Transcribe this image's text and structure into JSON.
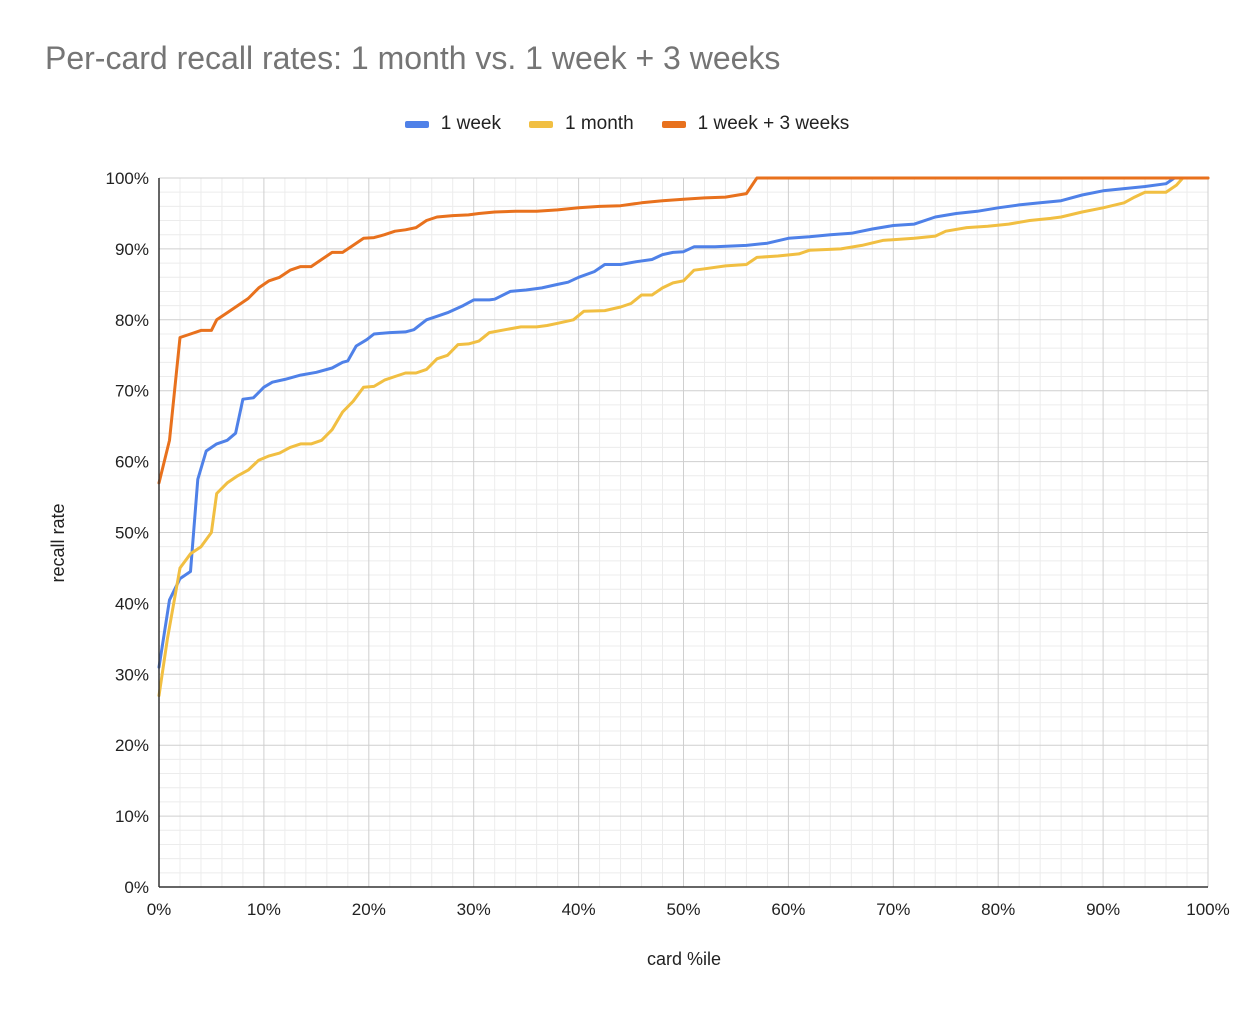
{
  "chart_data": {
    "type": "line",
    "title": "Per-card recall rates: 1 month vs. 1 week + 3 weeks",
    "xlabel": "card %ile",
    "ylabel": "recall rate",
    "xlim": [
      0,
      100
    ],
    "ylim": [
      0,
      100
    ],
    "x_ticks": [
      "0%",
      "10%",
      "20%",
      "30%",
      "40%",
      "50%",
      "60%",
      "70%",
      "80%",
      "90%",
      "100%"
    ],
    "y_ticks": [
      "0%",
      "10%",
      "20%",
      "30%",
      "40%",
      "50%",
      "60%",
      "70%",
      "80%",
      "90%",
      "100%"
    ],
    "grid": true,
    "legend_position": "top",
    "series": [
      {
        "name": "1 week",
        "color": "#4f81e8",
        "points": [
          [
            0,
            31
          ],
          [
            1,
            40.5
          ],
          [
            2,
            43.5
          ],
          [
            3,
            44.5
          ],
          [
            3.7,
            57.5
          ],
          [
            4.5,
            61.5
          ],
          [
            5.5,
            62.5
          ],
          [
            6.5,
            63
          ],
          [
            7.3,
            64
          ],
          [
            8,
            68.8
          ],
          [
            9,
            69
          ],
          [
            10,
            70.5
          ],
          [
            10.8,
            71.2
          ],
          [
            12,
            71.6
          ],
          [
            13.5,
            72.2
          ],
          [
            15,
            72.6
          ],
          [
            16.5,
            73.2
          ],
          [
            17.5,
            74
          ],
          [
            18,
            74.2
          ],
          [
            18.8,
            76.3
          ],
          [
            19.8,
            77.2
          ],
          [
            20.5,
            78
          ],
          [
            22,
            78.2
          ],
          [
            23.5,
            78.3
          ],
          [
            24.3,
            78.6
          ],
          [
            25.5,
            80
          ],
          [
            26.5,
            80.5
          ],
          [
            27.5,
            81
          ],
          [
            29,
            82
          ],
          [
            30,
            82.8
          ],
          [
            31.5,
            82.8
          ],
          [
            32,
            82.9
          ],
          [
            33.5,
            84
          ],
          [
            35,
            84.2
          ],
          [
            36.5,
            84.5
          ],
          [
            38,
            85
          ],
          [
            39,
            85.3
          ],
          [
            40,
            86
          ],
          [
            41.5,
            86.8
          ],
          [
            42.5,
            87.8
          ],
          [
            44,
            87.8
          ],
          [
            45.5,
            88.2
          ],
          [
            47,
            88.5
          ],
          [
            48,
            89.2
          ],
          [
            49,
            89.5
          ],
          [
            50,
            89.6
          ],
          [
            51,
            90.3
          ],
          [
            53,
            90.3
          ],
          [
            56,
            90.5
          ],
          [
            58,
            90.8
          ],
          [
            60,
            91.5
          ],
          [
            62,
            91.7
          ],
          [
            64,
            92
          ],
          [
            66,
            92.2
          ],
          [
            68,
            92.8
          ],
          [
            70,
            93.3
          ],
          [
            72,
            93.5
          ],
          [
            74,
            94.5
          ],
          [
            76,
            95
          ],
          [
            78,
            95.3
          ],
          [
            80,
            95.8
          ],
          [
            82,
            96.2
          ],
          [
            84,
            96.5
          ],
          [
            86,
            96.8
          ],
          [
            88,
            97.6
          ],
          [
            90,
            98.2
          ],
          [
            92,
            98.5
          ],
          [
            94,
            98.8
          ],
          [
            96,
            99.2
          ],
          [
            96.8,
            100
          ],
          [
            100,
            100
          ]
        ]
      },
      {
        "name": "1 month",
        "color": "#f1bf42",
        "points": [
          [
            0,
            27
          ],
          [
            0.8,
            35
          ],
          [
            2,
            45
          ],
          [
            3,
            47
          ],
          [
            4,
            48
          ],
          [
            5,
            50
          ],
          [
            5.5,
            55.5
          ],
          [
            6.5,
            57
          ],
          [
            7.5,
            58
          ],
          [
            8.5,
            58.8
          ],
          [
            9.5,
            60.2
          ],
          [
            10.5,
            60.8
          ],
          [
            11.5,
            61.2
          ],
          [
            12.5,
            62
          ],
          [
            13.5,
            62.5
          ],
          [
            14.5,
            62.5
          ],
          [
            15.5,
            63
          ],
          [
            16.5,
            64.5
          ],
          [
            17.5,
            67
          ],
          [
            18.5,
            68.5
          ],
          [
            19.5,
            70.5
          ],
          [
            20.5,
            70.6
          ],
          [
            21.5,
            71.5
          ],
          [
            22.5,
            72
          ],
          [
            23.5,
            72.5
          ],
          [
            24.5,
            72.5
          ],
          [
            25.5,
            73
          ],
          [
            26.5,
            74.5
          ],
          [
            27.5,
            75
          ],
          [
            28.5,
            76.5
          ],
          [
            29.5,
            76.6
          ],
          [
            30.5,
            77
          ],
          [
            31.5,
            78.2
          ],
          [
            33,
            78.6
          ],
          [
            34.5,
            79
          ],
          [
            36,
            79
          ],
          [
            37,
            79.2
          ],
          [
            38,
            79.5
          ],
          [
            39.5,
            80
          ],
          [
            40.5,
            81.2
          ],
          [
            42.5,
            81.3
          ],
          [
            44,
            81.8
          ],
          [
            45,
            82.3
          ],
          [
            46,
            83.5
          ],
          [
            47,
            83.5
          ],
          [
            48,
            84.5
          ],
          [
            49,
            85.2
          ],
          [
            50,
            85.5
          ],
          [
            51,
            87
          ],
          [
            52,
            87.2
          ],
          [
            54,
            87.6
          ],
          [
            56,
            87.8
          ],
          [
            57,
            88.8
          ],
          [
            59,
            89
          ],
          [
            61,
            89.3
          ],
          [
            62,
            89.8
          ],
          [
            65,
            90
          ],
          [
            67,
            90.5
          ],
          [
            69,
            91.2
          ],
          [
            72,
            91.5
          ],
          [
            74,
            91.8
          ],
          [
            75,
            92.5
          ],
          [
            77,
            93
          ],
          [
            79,
            93.2
          ],
          [
            81,
            93.5
          ],
          [
            83,
            94
          ],
          [
            85,
            94.3
          ],
          [
            86,
            94.5
          ],
          [
            88,
            95.2
          ],
          [
            90,
            95.8
          ],
          [
            92,
            96.5
          ],
          [
            93,
            97.3
          ],
          [
            94,
            98
          ],
          [
            96,
            98
          ],
          [
            97,
            99
          ],
          [
            97.6,
            100
          ],
          [
            100,
            100
          ]
        ]
      },
      {
        "name": "1 week + 3 weeks",
        "color": "#e8711d",
        "points": [
          [
            0,
            57
          ],
          [
            1,
            63
          ],
          [
            2,
            77.5
          ],
          [
            3,
            78
          ],
          [
            4,
            78.5
          ],
          [
            5,
            78.5
          ],
          [
            5.5,
            80
          ],
          [
            6.5,
            81
          ],
          [
            7.5,
            82
          ],
          [
            8.5,
            83
          ],
          [
            9.5,
            84.5
          ],
          [
            10.5,
            85.5
          ],
          [
            11.5,
            86
          ],
          [
            12.5,
            87
          ],
          [
            13.5,
            87.5
          ],
          [
            14.5,
            87.5
          ],
          [
            15.5,
            88.5
          ],
          [
            16.5,
            89.5
          ],
          [
            17.5,
            89.5
          ],
          [
            18.5,
            90.5
          ],
          [
            19.5,
            91.5
          ],
          [
            20.5,
            91.6
          ],
          [
            21.5,
            92
          ],
          [
            22.5,
            92.5
          ],
          [
            23.5,
            92.7
          ],
          [
            24.5,
            93
          ],
          [
            25.5,
            94
          ],
          [
            26.5,
            94.5
          ],
          [
            28,
            94.7
          ],
          [
            29.5,
            94.8
          ],
          [
            30.5,
            95
          ],
          [
            32,
            95.2
          ],
          [
            34,
            95.3
          ],
          [
            36,
            95.3
          ],
          [
            38,
            95.5
          ],
          [
            40,
            95.8
          ],
          [
            42,
            96
          ],
          [
            44,
            96.1
          ],
          [
            46,
            96.5
          ],
          [
            48,
            96.8
          ],
          [
            50,
            97
          ],
          [
            52,
            97.2
          ],
          [
            54,
            97.3
          ],
          [
            56,
            97.8
          ],
          [
            57,
            100
          ],
          [
            100,
            100
          ]
        ]
      }
    ]
  }
}
